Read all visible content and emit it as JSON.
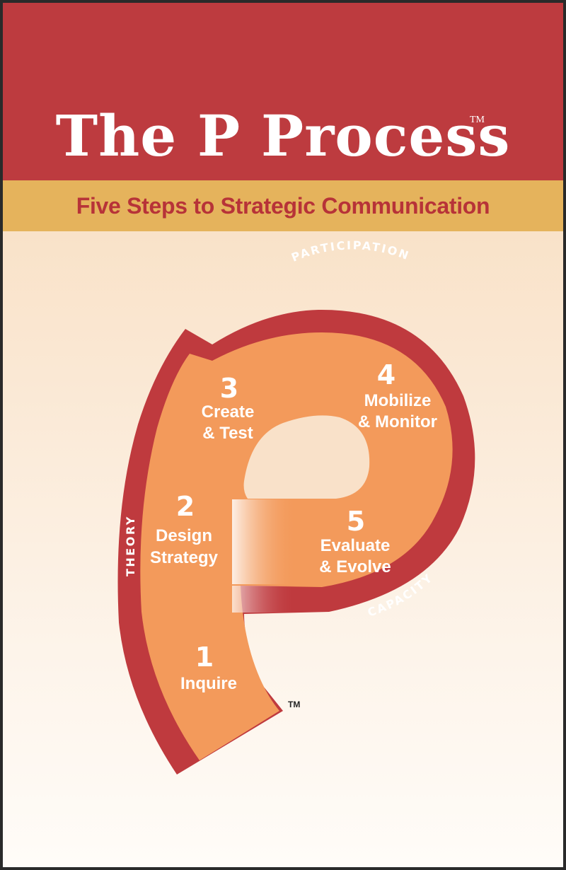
{
  "header": {
    "title": "The P Process",
    "trademark": "TM",
    "subtitle": "Five Steps to Strategic Communication"
  },
  "diagram": {
    "steps": [
      {
        "number": "1",
        "line1": "Inquire",
        "line2": ""
      },
      {
        "number": "2",
        "line1": "Design",
        "line2": "Strategy"
      },
      {
        "number": "3",
        "line1": "Create",
        "line2": "& Test"
      },
      {
        "number": "4",
        "line1": "Mobilize",
        "line2": "& Monitor"
      },
      {
        "number": "5",
        "line1": "Evaluate",
        "line2": "& Evolve"
      }
    ],
    "outer_labels": {
      "top": "PARTICIPATION",
      "left": "THEORY",
      "bottom": "CAPACITY"
    },
    "trademark": "TM"
  },
  "colors": {
    "header_red": "#bd3b3f",
    "band_gold": "#e5b35c",
    "ring_red": "#bf3a3e",
    "step_orange": "#f39a5b"
  }
}
